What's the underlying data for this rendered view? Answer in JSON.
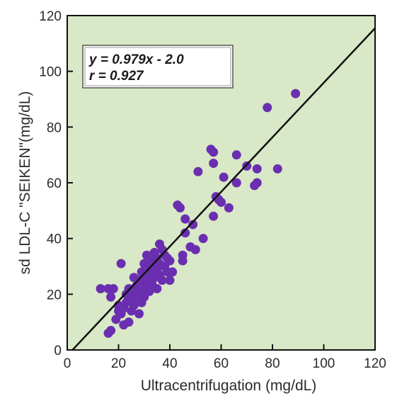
{
  "chart_data": {
    "type": "scatter",
    "title": "",
    "xlabel": "Ultracentrifugation (mg/dL)",
    "ylabel": "sd LDL-C \"SEIKEN\"(mg/dL)",
    "xlim": [
      0,
      120
    ],
    "ylim": [
      0,
      120
    ],
    "x_ticks": [
      "0",
      "20",
      "40",
      "60",
      "80",
      "100",
      "120"
    ],
    "y_ticks": [
      "0",
      "20",
      "40",
      "60",
      "80",
      "100",
      "120"
    ],
    "grid": false,
    "background_color": "#d9e8c6",
    "point_color": "#6a2fb0",
    "line_color": "#111111",
    "annotation": {
      "line1": "y = 0.979x - 2.0",
      "line2": "r = 0.927"
    },
    "regression": {
      "slope": 0.979,
      "intercept": -2.0
    },
    "series": [
      {
        "points": [
          [
            13,
            22
          ],
          [
            16,
            22
          ],
          [
            16,
            6
          ],
          [
            17,
            7
          ],
          [
            17,
            19
          ],
          [
            18,
            22
          ],
          [
            19,
            11
          ],
          [
            20,
            14
          ],
          [
            20,
            16
          ],
          [
            21,
            31
          ],
          [
            21,
            13
          ],
          [
            22,
            15
          ],
          [
            22,
            9
          ],
          [
            23,
            20
          ],
          [
            23,
            17
          ],
          [
            24,
            22
          ],
          [
            24,
            10
          ],
          [
            25,
            19
          ],
          [
            25,
            14
          ],
          [
            26,
            26
          ],
          [
            26,
            21
          ],
          [
            26,
            16
          ],
          [
            27,
            23
          ],
          [
            27,
            19
          ],
          [
            28,
            13
          ],
          [
            28,
            25
          ],
          [
            29,
            21
          ],
          [
            29,
            28
          ],
          [
            29,
            17
          ],
          [
            30,
            24
          ],
          [
            30,
            31
          ],
          [
            30,
            19
          ],
          [
            31,
            26
          ],
          [
            31,
            22
          ],
          [
            31,
            34
          ],
          [
            32,
            29
          ],
          [
            32,
            25
          ],
          [
            32,
            21
          ],
          [
            33,
            32
          ],
          [
            33,
            28
          ],
          [
            33,
            24
          ],
          [
            34,
            35
          ],
          [
            34,
            30
          ],
          [
            34,
            26
          ],
          [
            35,
            33
          ],
          [
            35,
            29
          ],
          [
            35,
            22
          ],
          [
            36,
            38
          ],
          [
            36,
            27
          ],
          [
            36,
            31
          ],
          [
            37,
            36
          ],
          [
            37,
            25
          ],
          [
            38,
            34
          ],
          [
            38,
            30
          ],
          [
            39,
            28
          ],
          [
            39,
            33
          ],
          [
            40,
            32
          ],
          [
            40,
            25
          ],
          [
            41,
            28
          ],
          [
            43,
            52
          ],
          [
            44,
            51
          ],
          [
            45,
            34
          ],
          [
            45,
            32
          ],
          [
            46,
            47
          ],
          [
            46,
            42
          ],
          [
            48,
            37
          ],
          [
            49,
            45
          ],
          [
            50,
            36
          ],
          [
            51,
            64
          ],
          [
            53,
            40
          ],
          [
            56,
            72
          ],
          [
            57,
            71
          ],
          [
            57,
            67
          ],
          [
            57,
            48
          ],
          [
            58,
            55
          ],
          [
            59,
            54
          ],
          [
            60,
            53
          ],
          [
            61,
            62
          ],
          [
            63,
            51
          ],
          [
            66,
            70
          ],
          [
            66,
            60
          ],
          [
            70,
            66
          ],
          [
            73,
            59
          ],
          [
            74,
            65
          ],
          [
            74,
            60
          ],
          [
            78,
            87
          ],
          [
            82,
            65
          ],
          [
            89,
            92
          ]
        ]
      }
    ]
  }
}
